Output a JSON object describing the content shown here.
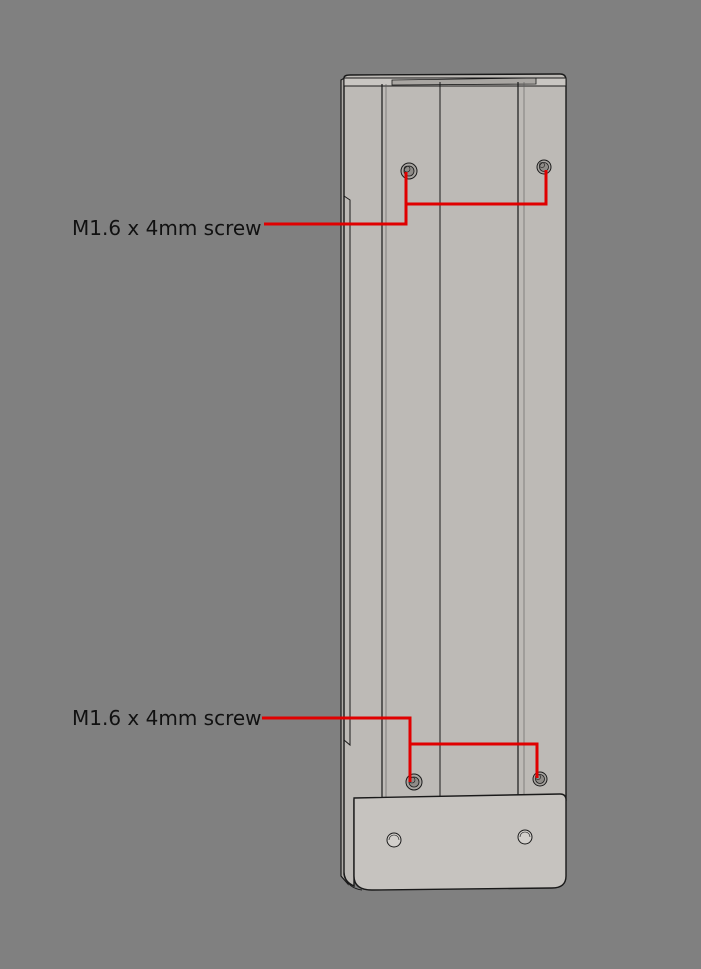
{
  "callouts": [
    {
      "label": "M1.6 x 4mm screw"
    },
    {
      "label": "M1.6 x 4mm screw"
    }
  ],
  "colors": {
    "background": "#808080",
    "part_fill": "#bdbab6",
    "part_face": "#c6c3bf",
    "outline": "#1a1a1a",
    "leader": "#e00000"
  }
}
